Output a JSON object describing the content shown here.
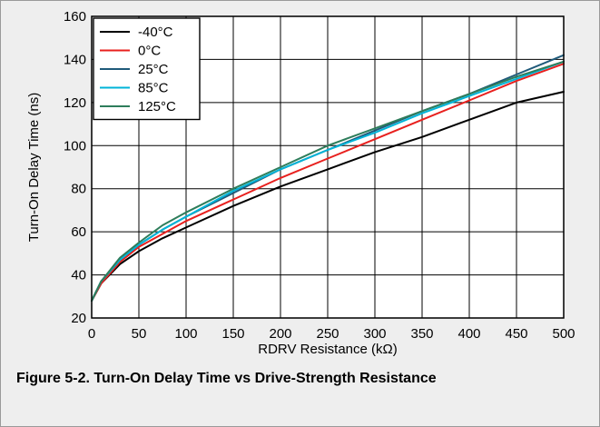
{
  "caption": "Figure 5-2. Turn-On Delay Time vs Drive-Strength Resistance",
  "chart_data": {
    "type": "line",
    "title": "",
    "xlabel": "RDRV Resistance (kΩ)",
    "ylabel": "Turn-On Delay Time (ns)",
    "xlim": [
      0,
      500
    ],
    "ylim": [
      20,
      160
    ],
    "xticks": [
      0,
      50,
      100,
      150,
      200,
      250,
      300,
      350,
      400,
      450,
      500
    ],
    "yticks": [
      20,
      40,
      60,
      80,
      100,
      120,
      140,
      160
    ],
    "grid": true,
    "legend_position": "top-left",
    "series": [
      {
        "name": "-40°C",
        "color": "#000000",
        "x": [
          0,
          10,
          30,
          50,
          75,
          100,
          150,
          200,
          250,
          300,
          350,
          400,
          450,
          500
        ],
        "y": [
          28,
          36,
          45,
          51,
          57,
          62,
          72,
          81,
          89,
          97,
          104,
          112,
          120,
          125
        ]
      },
      {
        "name": "0°C",
        "color": "#e8201e",
        "x": [
          0,
          10,
          30,
          50,
          75,
          100,
          150,
          200,
          250,
          300,
          350,
          400,
          450,
          500
        ],
        "y": [
          28,
          36,
          46,
          53,
          59,
          65,
          75,
          85,
          94,
          103,
          112,
          121,
          130,
          138
        ]
      },
      {
        "name": "25°C",
        "color": "#1f5a7a",
        "x": [
          0,
          10,
          30,
          50,
          75,
          100,
          150,
          200,
          250,
          300,
          350,
          400,
          450,
          500
        ],
        "y": [
          28,
          37,
          47,
          54,
          61,
          67,
          78,
          89,
          98,
          107,
          116,
          124,
          133,
          142
        ]
      },
      {
        "name": "85°C",
        "color": "#00b4d8",
        "x": [
          0,
          10,
          30,
          50,
          75,
          100,
          150,
          200,
          250,
          300,
          350,
          400,
          450,
          500
        ],
        "y": [
          28,
          37,
          47,
          54,
          61,
          67,
          79,
          89,
          98,
          106,
          115,
          123,
          131,
          139
        ]
      },
      {
        "name": "125°C",
        "color": "#2e7d5b",
        "x": [
          0,
          10,
          30,
          50,
          75,
          100,
          150,
          200,
          250,
          300,
          350,
          400,
          450,
          500
        ],
        "y": [
          28,
          37,
          48,
          55,
          63,
          69,
          80,
          90,
          100,
          108,
          116,
          124,
          132,
          139
        ]
      }
    ]
  }
}
